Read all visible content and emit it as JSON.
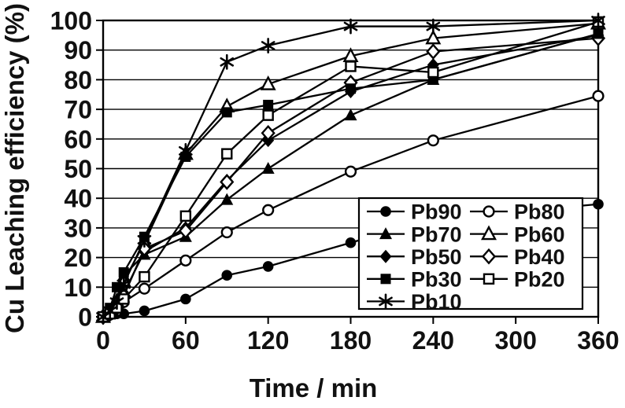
{
  "chart_data": {
    "type": "line",
    "title": "",
    "xlabel": "Time / min",
    "ylabel": "Cu Leaching efficiency (%)",
    "xlim": [
      0,
      360
    ],
    "ylim": [
      0,
      100
    ],
    "xticks": [
      0,
      60,
      120,
      180,
      240,
      300,
      360
    ],
    "yticks": [
      0,
      10,
      20,
      30,
      40,
      50,
      60,
      70,
      80,
      90,
      100
    ],
    "grid": "horizontal",
    "legend_position": "inside-bottom-right",
    "x": [
      0,
      5,
      10,
      15,
      30,
      60,
      90,
      120,
      180,
      240,
      360
    ],
    "series": [
      {
        "name": "Pb90",
        "marker": "circle-filled",
        "values": [
          0,
          0.5,
          1,
          1,
          2,
          6,
          14,
          17,
          25,
          33,
          38
        ]
      },
      {
        "name": "Pb80",
        "marker": "circle-open",
        "values": [
          0,
          1,
          2,
          5,
          9.5,
          19,
          28.5,
          36,
          49,
          59.5,
          74.5
        ]
      },
      {
        "name": "Pb70",
        "marker": "triangle-filled",
        "values": [
          0,
          2,
          6,
          14,
          21,
          27,
          39.5,
          50,
          68,
          80,
          95.5
        ]
      },
      {
        "name": "Pb60",
        "marker": "triangle-open",
        "values": [
          0,
          1.5,
          5,
          12,
          25,
          55,
          71,
          78.5,
          88,
          94,
          99
        ]
      },
      {
        "name": "Pb50",
        "marker": "diamond-filled",
        "values": [
          0,
          1.5,
          4,
          8,
          22,
          30,
          46,
          59.5,
          76,
          85,
          95
        ]
      },
      {
        "name": "Pb40",
        "marker": "diamond-open",
        "values": [
          0,
          1,
          3,
          7,
          23,
          29,
          45.5,
          62,
          79,
          89.5,
          94
        ]
      },
      {
        "name": "Pb30",
        "marker": "square-filled",
        "values": [
          0,
          3,
          10,
          15,
          27,
          54,
          69,
          71.5,
          77,
          80,
          95.5
        ]
      },
      {
        "name": "Pb20",
        "marker": "square-open",
        "values": [
          0,
          1,
          3,
          6,
          13.5,
          34,
          55,
          68,
          84.5,
          82.5,
          99.5
        ]
      },
      {
        "name": "Pb10",
        "marker": "asterisk",
        "values": [
          0,
          2,
          5,
          11,
          26,
          56,
          86,
          91.5,
          98,
          98,
          100
        ]
      }
    ],
    "legend": {
      "columns": 2,
      "rows": [
        [
          "Pb90",
          "Pb80"
        ],
        [
          "Pb70",
          "Pb60"
        ],
        [
          "Pb50",
          "Pb40"
        ],
        [
          "Pb30",
          "Pb20"
        ],
        [
          "Pb10"
        ]
      ]
    },
    "colors": {
      "foreground": "#000000",
      "background": "#ffffff"
    }
  }
}
